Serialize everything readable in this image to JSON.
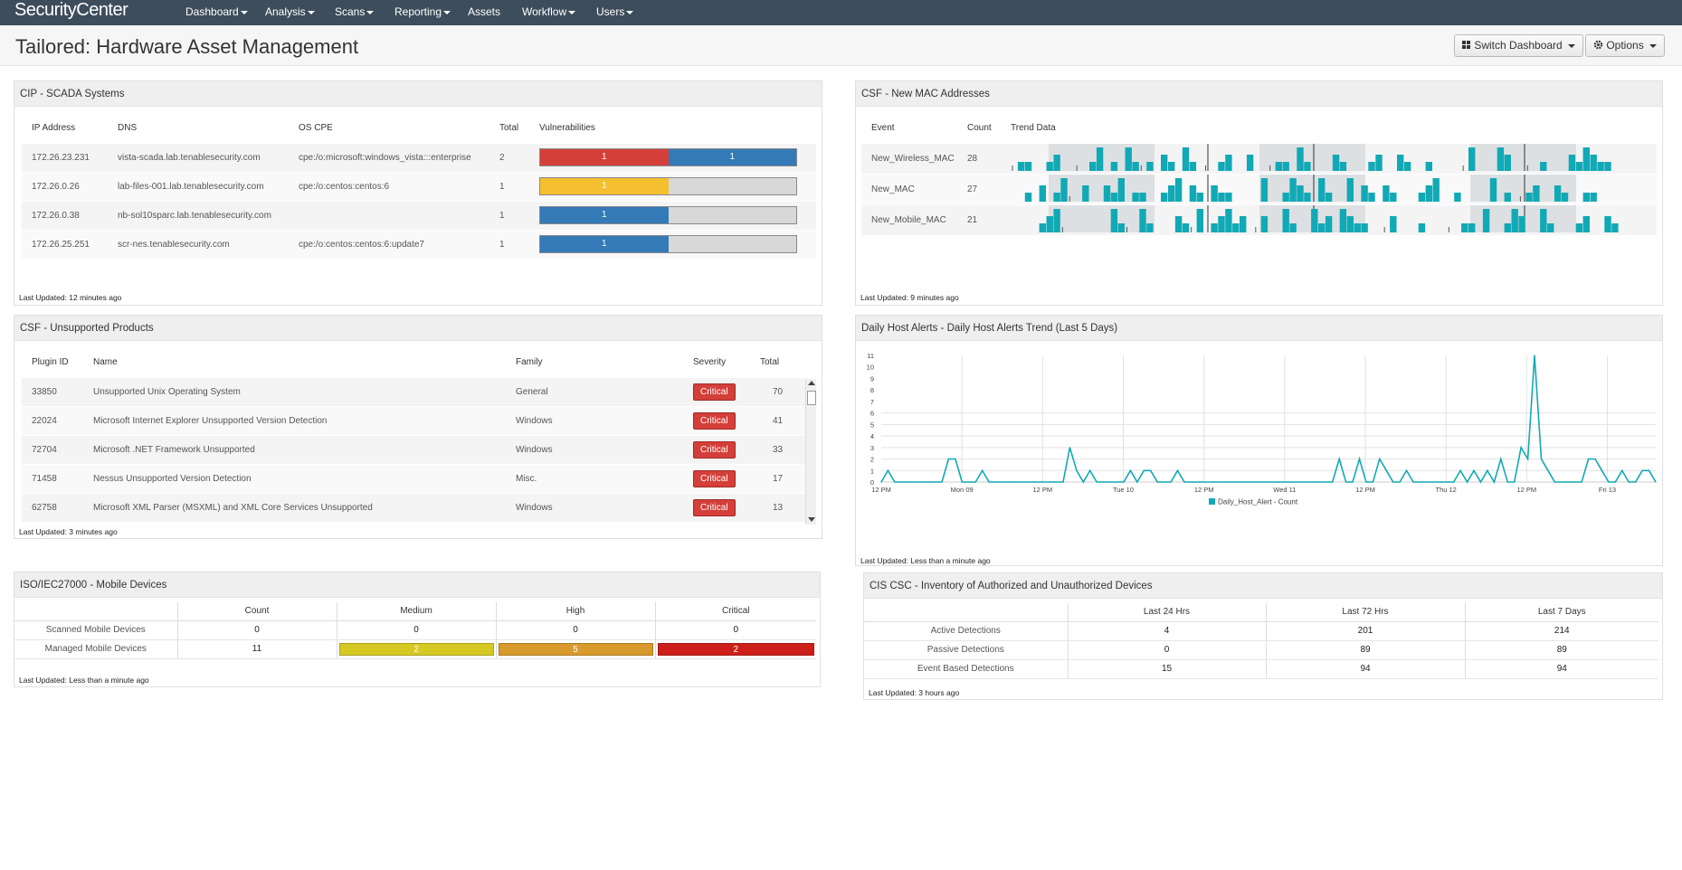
{
  "nav": {
    "brand": "SecurityCenter",
    "items": [
      {
        "label": "Dashboard",
        "dropdown": true
      },
      {
        "label": "Analysis",
        "dropdown": true
      },
      {
        "label": "Scans",
        "dropdown": true
      },
      {
        "label": "Reporting",
        "dropdown": true
      },
      {
        "label": "Assets",
        "dropdown": false
      },
      {
        "label": "Workflow",
        "dropdown": true
      },
      {
        "label": "Users",
        "dropdown": true
      }
    ]
  },
  "page": {
    "title": "Tailored: Hardware Asset Management",
    "switch_label": "Switch Dashboard",
    "options_label": "Options",
    "switch_icon": "grid-icon",
    "options_icon": "gear-icon"
  },
  "scada": {
    "title": "CIP - SCADA Systems",
    "headers": [
      "IP Address",
      "DNS",
      "OS CPE",
      "Total",
      "Vulnerabilities"
    ],
    "rows": [
      {
        "ip": "172.26.23.231",
        "dns": "vista-scada.lab.tenablesecurity.com",
        "cpe": "cpe:/o:microsoft:windows_vista:::enterprise",
        "total": "2",
        "segments": [
          {
            "value": "1",
            "color": "red",
            "share": 0.5
          },
          {
            "value": "1",
            "color": "blue",
            "share": 0.5
          }
        ]
      },
      {
        "ip": "172.26.0.26",
        "dns": "lab-files-001.lab.tenablesecurity.com",
        "cpe": "cpe:/o:centos:centos:6",
        "total": "1",
        "segments": [
          {
            "value": "1",
            "color": "yellow",
            "share": 0.5
          }
        ]
      },
      {
        "ip": "172.26.0.38",
        "dns": "nb-sol10sparc.lab.tenablesecurity.com",
        "cpe": "",
        "total": "1",
        "segments": [
          {
            "value": "1",
            "color": "blue",
            "share": 0.5
          }
        ]
      },
      {
        "ip": "172.26.25.251",
        "dns": "scr-nes.tenablesecurity.com",
        "cpe": "cpe:/o:centos:centos:6:update7",
        "total": "1",
        "segments": [
          {
            "value": "1",
            "color": "blue",
            "share": 0.5
          }
        ]
      }
    ],
    "last_updated": "Last Updated: 12 minutes ago"
  },
  "mac": {
    "title": "CSF - New MAC Addresses",
    "headers": [
      "Event",
      "Count",
      "Trend Data"
    ],
    "rows": [
      {
        "event": "New_Wireless_MAC",
        "count": "28"
      },
      {
        "event": "New_MAC",
        "count": "27"
      },
      {
        "event": "New_Mobile_MAC",
        "count": "21"
      }
    ],
    "last_updated": "Last Updated: 9 minutes ago",
    "trend_color": "#11a9b5"
  },
  "unsupported": {
    "title": "CSF - Unsupported Products",
    "headers": [
      "Plugin ID",
      "Name",
      "Family",
      "Severity",
      "Total"
    ],
    "rows": [
      {
        "id": "33850",
        "name": "Unsupported Unix Operating System",
        "family": "General",
        "severity": "Critical",
        "total": "70"
      },
      {
        "id": "22024",
        "name": "Microsoft Internet Explorer Unsupported Version Detection",
        "family": "Windows",
        "severity": "Critical",
        "total": "41"
      },
      {
        "id": "72704",
        "name": "Microsoft .NET Framework Unsupported",
        "family": "Windows",
        "severity": "Critical",
        "total": "33"
      },
      {
        "id": "71458",
        "name": "Nessus Unsupported Version Detection",
        "family": "Misc.",
        "severity": "Critical",
        "total": "17"
      },
      {
        "id": "62758",
        "name": "Microsoft XML Parser (MSXML) and XML Core Services Unsupported",
        "family": "Windows",
        "severity": "Critical",
        "total": "13"
      }
    ],
    "last_updated": "Last Updated: 3 minutes ago"
  },
  "host_alerts": {
    "title": "Daily Host Alerts - Daily Host Alerts Trend (Last 5 Days)",
    "last_updated": "Last Updated: Less than a minute ago"
  },
  "chart_data": {
    "type": "line",
    "series": [
      {
        "name": "Daily_Host_Alert - Count",
        "values": [
          0,
          1,
          0,
          0,
          0,
          0,
          0,
          0,
          0,
          0,
          2,
          2,
          0,
          0,
          0,
          1,
          0,
          0,
          0,
          0,
          0,
          0,
          0,
          0,
          0,
          0,
          0,
          0,
          3,
          1,
          0,
          1,
          0,
          0,
          0,
          0,
          0,
          1,
          0,
          1,
          1,
          0,
          0,
          0,
          1,
          0,
          0,
          0,
          0,
          0,
          0,
          0,
          0,
          0,
          0,
          0,
          0,
          0,
          0,
          0,
          0,
          0,
          0,
          0,
          0,
          0,
          0,
          0,
          2,
          0,
          0,
          2,
          0,
          0,
          2,
          1,
          0,
          0,
          1,
          0,
          0,
          0,
          0,
          0,
          0,
          0,
          1,
          0,
          1,
          0,
          1,
          0,
          2,
          0,
          0,
          3,
          2,
          11,
          2,
          1,
          0,
          0,
          0,
          0,
          0,
          2,
          2,
          1,
          0,
          0,
          1,
          0,
          0,
          1,
          1,
          0
        ]
      }
    ],
    "x_ticks": [
      "12 PM",
      "Mon 09",
      "12 PM",
      "Tue 10",
      "12 PM",
      "Wed 11",
      "12 PM",
      "Thu 12",
      "12 PM",
      "Fri 13"
    ],
    "y_ticks": [
      0,
      1,
      2,
      3,
      4,
      5,
      6,
      7,
      8,
      9,
      10,
      11
    ],
    "ylim": [
      0,
      11
    ],
    "color": "#11a9b5"
  },
  "mobile": {
    "title": "ISO/IEC27000 - Mobile Devices",
    "headers": [
      "",
      "Count",
      "Medium",
      "High",
      "Critical"
    ],
    "rows": [
      {
        "label": "Scanned Mobile Devices",
        "count": "0",
        "medium": "0",
        "high": "0",
        "critical": "0"
      },
      {
        "label": "Managed Mobile Devices",
        "count": "11",
        "medium": "2",
        "high": "5",
        "critical": "2"
      }
    ],
    "colors": {
      "medium": "#d6c923",
      "high": "#d89a2c",
      "critical": "#cc1f1a"
    },
    "last_updated": "Last Updated: Less than a minute ago"
  },
  "cis": {
    "title": "CIS CSC - Inventory of Authorized and Unauthorized Devices",
    "headers": [
      "",
      "Last 24 Hrs",
      "Last 72 Hrs",
      "Last 7 Days"
    ],
    "rows": [
      {
        "label": "Active Detections",
        "h24": "4",
        "h72": "201",
        "d7": "214"
      },
      {
        "label": "Passive Detections",
        "h24": "0",
        "h72": "89",
        "d7": "89"
      },
      {
        "label": "Event Based Detections",
        "h24": "15",
        "h72": "94",
        "d7": "94"
      }
    ],
    "last_updated": "Last Updated: 3 hours ago"
  }
}
